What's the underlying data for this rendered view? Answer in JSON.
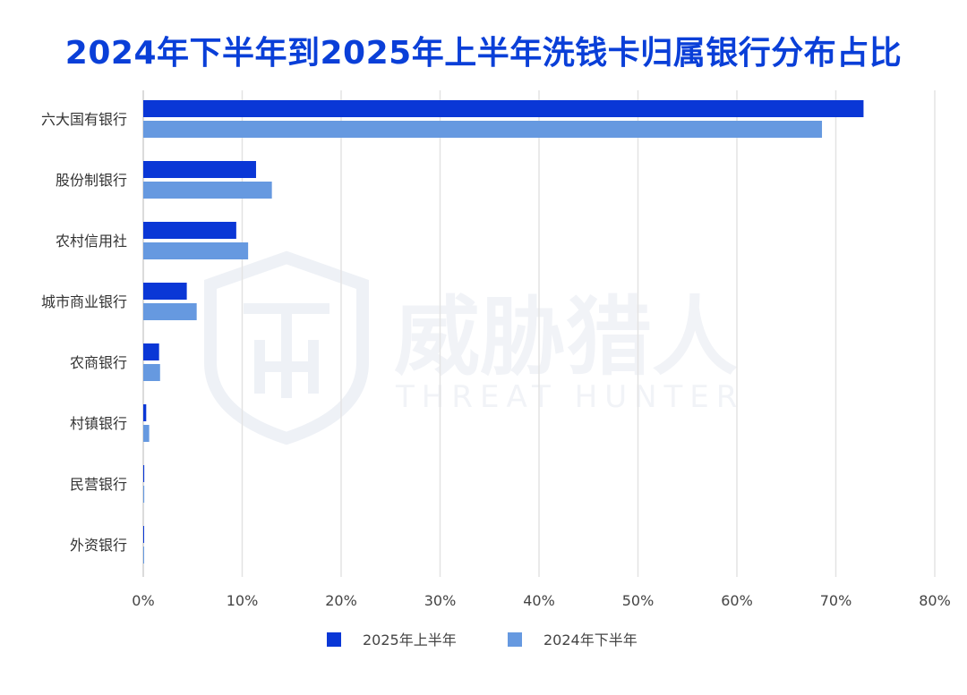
{
  "chart_data": {
    "type": "bar",
    "orientation": "horizontal",
    "title": "2024年下半年到2025年上半年洗钱卡归属银行分布占比",
    "categories": [
      "六大国有银行",
      "股份制银行",
      "农村信用社",
      "城市商业银行",
      "农商银行",
      "村镇银行",
      "民营银行",
      "外资银行"
    ],
    "series": [
      {
        "name": "2025年上半年",
        "color": "#0a37d6",
        "values": [
          72.8,
          11.4,
          9.4,
          4.4,
          1.6,
          0.3,
          0.1,
          0.05
        ]
      },
      {
        "name": "2024年下半年",
        "color": "#6699e0",
        "values": [
          68.6,
          13.0,
          10.6,
          5.4,
          1.7,
          0.6,
          0.1,
          0.05
        ]
      }
    ],
    "xlim": [
      0,
      80
    ],
    "x_ticks": [
      "0%",
      "10%",
      "20%",
      "30%",
      "40%",
      "50%",
      "60%",
      "70%",
      "80%"
    ],
    "grid": true,
    "legend": "bottom"
  },
  "watermark": {
    "text": "威胁猎人",
    "subtext": "THREAT HUNTER"
  }
}
